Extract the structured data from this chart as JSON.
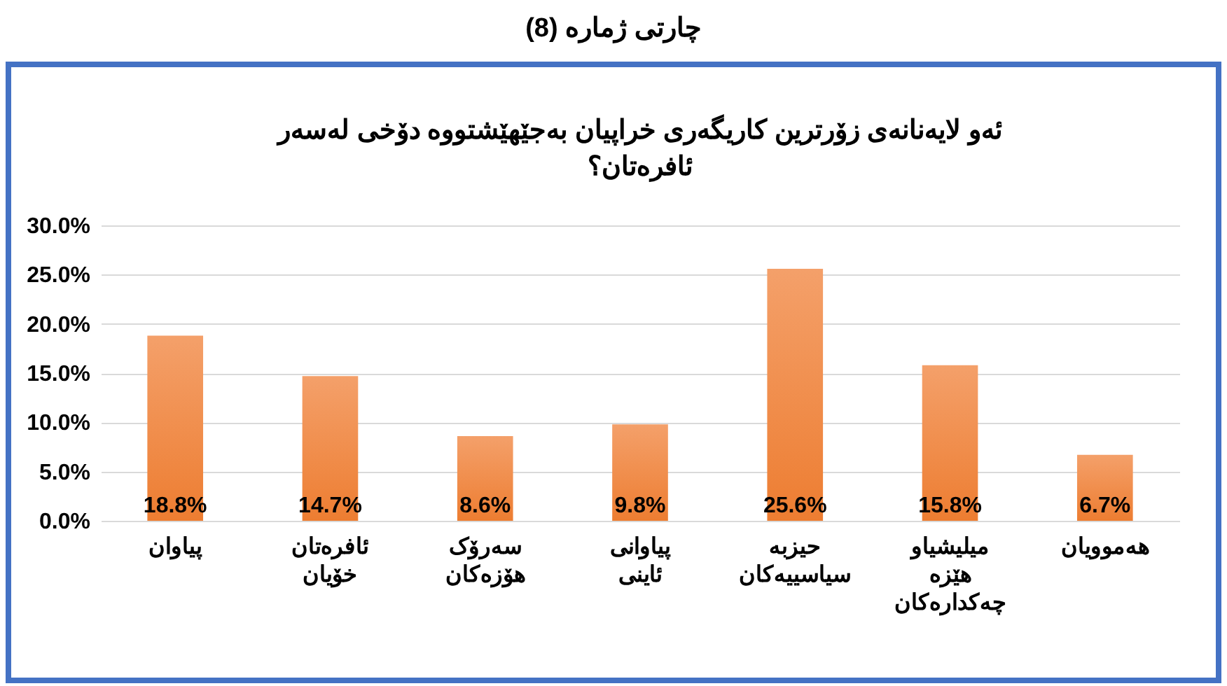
{
  "chart_data": {
    "type": "bar",
    "title": "چارتی ژمارە (8)",
    "subtitle": "ئەو لایەنانەی زۆرترین کاریگەری خراپیان بەجێهێشتووە دۆخی لەسەر ئافرەتان؟",
    "categories": [
      "پیاوان",
      "ئافرەتان خۆیان",
      "سەرۆک هۆزەکان",
      "پیاوانی ئاینی",
      "حیزبە سیاسییەکان",
      "میلیشیاو هێزە چەکدارەکان",
      "هەموویان"
    ],
    "values": [
      18.8,
      14.7,
      8.6,
      9.8,
      25.6,
      15.8,
      6.7
    ],
    "value_labels": [
      "18.8%",
      "14.7%",
      "8.6%",
      "9.8%",
      "25.6%",
      "15.8%",
      "6.7%"
    ],
    "color": "#ed7d31",
    "ylim": [
      0,
      30
    ],
    "yticks": [
      {
        "value": 0,
        "label": "0.0%"
      },
      {
        "value": 5,
        "label": "5.0%"
      },
      {
        "value": 10,
        "label": "10.0%"
      },
      {
        "value": 15,
        "label": "15.0%"
      },
      {
        "value": 20,
        "label": "20.0%"
      },
      {
        "value": 25,
        "label": "25.0%"
      },
      {
        "value": 30,
        "label": "30.0%"
      }
    ],
    "grid": "y"
  }
}
